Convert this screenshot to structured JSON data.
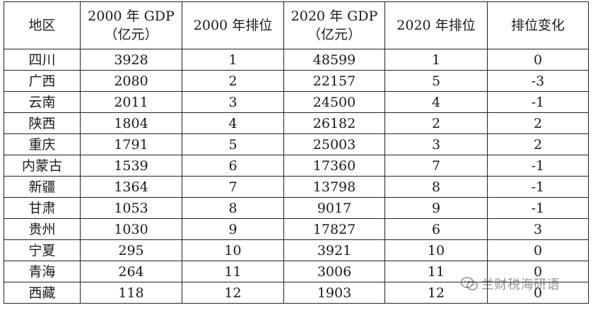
{
  "table": {
    "headers": [
      {
        "line1": "地区",
        "line2": ""
      },
      {
        "line1": "2000 年 GDP",
        "line2": "（亿元）"
      },
      {
        "line1": "2000 年排位",
        "line2": ""
      },
      {
        "line1": "2020 年 GDP",
        "line2": "（亿元）"
      },
      {
        "line1": "2020 年排位",
        "line2": ""
      },
      {
        "line1": "排位变化",
        "line2": ""
      }
    ],
    "rows": [
      [
        "四川",
        "3928",
        "1",
        "48599",
        "1",
        "0"
      ],
      [
        "广西",
        "2080",
        "2",
        "22157",
        "5",
        "-3"
      ],
      [
        "云南",
        "2011",
        "3",
        "24500",
        "4",
        "-1"
      ],
      [
        "陕西",
        "1804",
        "4",
        "26182",
        "2",
        "2"
      ],
      [
        "重庆",
        "1791",
        "5",
        "25003",
        "3",
        "2"
      ],
      [
        "内蒙古",
        "1539",
        "6",
        "17360",
        "7",
        "-1"
      ],
      [
        "新疆",
        "1364",
        "7",
        "13798",
        "8",
        "-1"
      ],
      [
        "甘肃",
        "1053",
        "8",
        "9017",
        "9",
        "-1"
      ],
      [
        "贵州",
        "1030",
        "9",
        "17827",
        "6",
        "3"
      ],
      [
        "宁夏",
        "295",
        "10",
        "3921",
        "10",
        "0"
      ],
      [
        "青海",
        "264",
        "11",
        "3006",
        "11",
        "0"
      ],
      [
        "西藏",
        "118",
        "12",
        "1903",
        "12",
        "0"
      ]
    ]
  },
  "watermark": {
    "text": "兰财税海研语",
    "icon": "wechat-icon"
  }
}
